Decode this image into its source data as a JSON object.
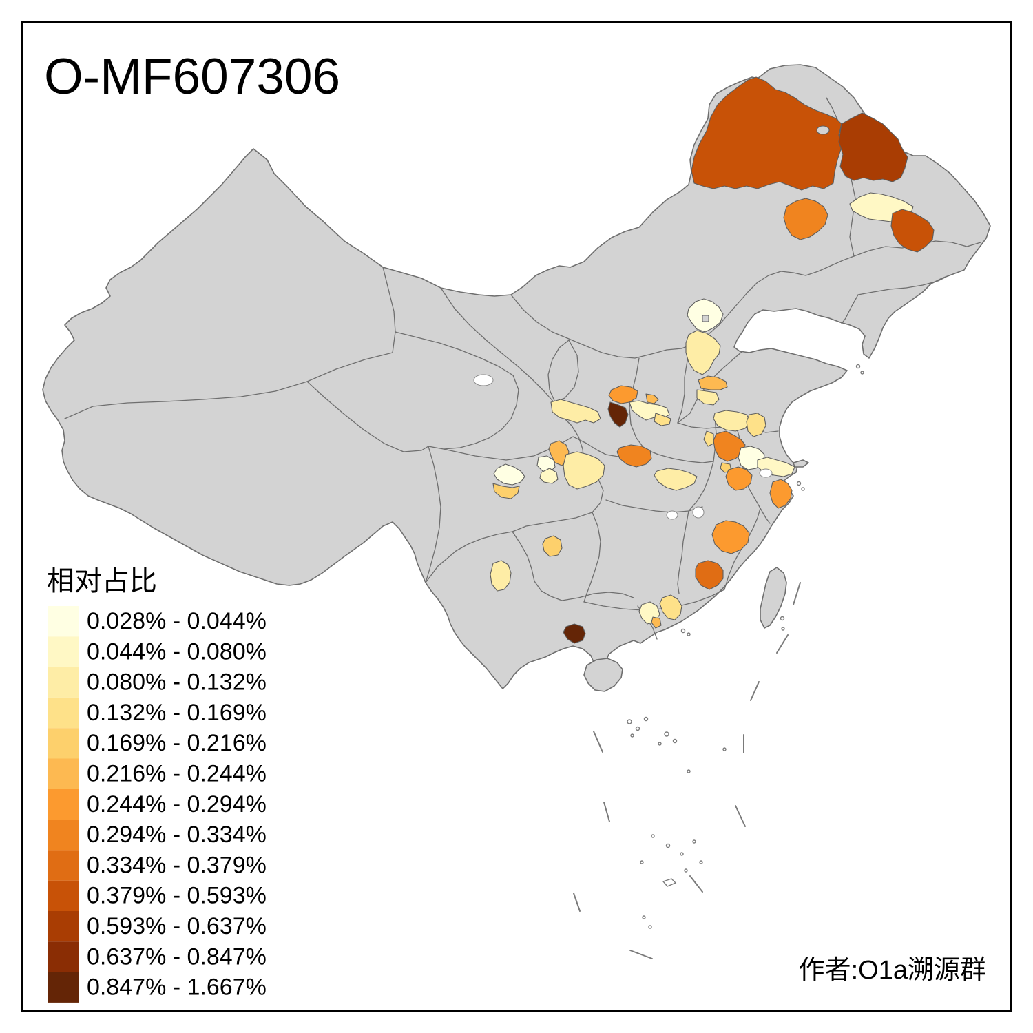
{
  "title": "O-MF607306",
  "attribution": "作者:O1a溯源群",
  "legend": {
    "title": "相对占比",
    "items": [
      {
        "range": "0.028% - 0.044%",
        "color": "#FFFFE3"
      },
      {
        "range": "0.044% - 0.080%",
        "color": "#FFF8C5"
      },
      {
        "range": "0.080% - 0.132%",
        "color": "#FEEDA6"
      },
      {
        "range": "0.132% - 0.169%",
        "color": "#FEE189"
      },
      {
        "range": "0.169% - 0.216%",
        "color": "#FDD06C"
      },
      {
        "range": "0.216% - 0.244%",
        "color": "#FDB951"
      },
      {
        "range": "0.244% - 0.294%",
        "color": "#FC9A2F"
      },
      {
        "range": "0.294% - 0.334%",
        "color": "#F0841F"
      },
      {
        "range": "0.334% - 0.379%",
        "color": "#E06D14"
      },
      {
        "range": "0.379% - 0.593%",
        "color": "#C85207"
      },
      {
        "range": "0.593% - 0.637%",
        "color": "#A93D03"
      },
      {
        "range": "0.637% - 0.847%",
        "color": "#8A2D04"
      },
      {
        "range": "0.847% - 1.667%",
        "color": "#642506"
      }
    ]
  },
  "map": {
    "land_fill": "#D3D3D3",
    "boundary_stroke": "#6E6E6E",
    "sea_color": "#FFFFFF",
    "regions": [
      {
        "id": "region-01",
        "category": 10
      },
      {
        "id": "region-02",
        "category": 11
      },
      {
        "id": "region-03",
        "category": 8
      },
      {
        "id": "region-04",
        "category": 2
      },
      {
        "id": "region-05",
        "category": 10
      },
      {
        "id": "region-06",
        "category": 1
      },
      {
        "id": "region-07",
        "category": 3
      },
      {
        "id": "region-08",
        "category": 6
      },
      {
        "id": "region-09",
        "category": 3
      },
      {
        "id": "region-10",
        "category": 7
      },
      {
        "id": "region-11",
        "category": 13
      },
      {
        "id": "region-12",
        "category": 6
      },
      {
        "id": "region-13",
        "category": 2
      },
      {
        "id": "region-14",
        "category": 4
      },
      {
        "id": "region-15",
        "category": 3
      },
      {
        "id": "region-16",
        "category": 6
      },
      {
        "id": "region-17",
        "category": 1
      },
      {
        "id": "region-18",
        "category": 2
      },
      {
        "id": "region-19",
        "category": 1
      },
      {
        "id": "region-20",
        "category": 5
      },
      {
        "id": "region-21",
        "category": 3
      },
      {
        "id": "region-22",
        "category": 8
      },
      {
        "id": "region-23",
        "category": 3
      },
      {
        "id": "region-24",
        "category": 3
      },
      {
        "id": "region-25",
        "category": 4
      },
      {
        "id": "region-26",
        "category": 8
      },
      {
        "id": "region-27",
        "category": 4
      },
      {
        "id": "region-28",
        "category": 5
      },
      {
        "id": "region-29",
        "category": 7
      },
      {
        "id": "region-30",
        "category": 1
      },
      {
        "id": "region-31",
        "category": 2
      },
      {
        "id": "region-32",
        "category": 7
      },
      {
        "id": "region-33",
        "category": 7
      },
      {
        "id": "region-34",
        "category": 9
      },
      {
        "id": "region-35",
        "category": 5
      },
      {
        "id": "region-36",
        "category": 3
      },
      {
        "id": "region-37",
        "category": 2
      },
      {
        "id": "region-38",
        "category": 4
      },
      {
        "id": "region-39",
        "category": 6
      },
      {
        "id": "region-40",
        "category": 13
      }
    ]
  }
}
